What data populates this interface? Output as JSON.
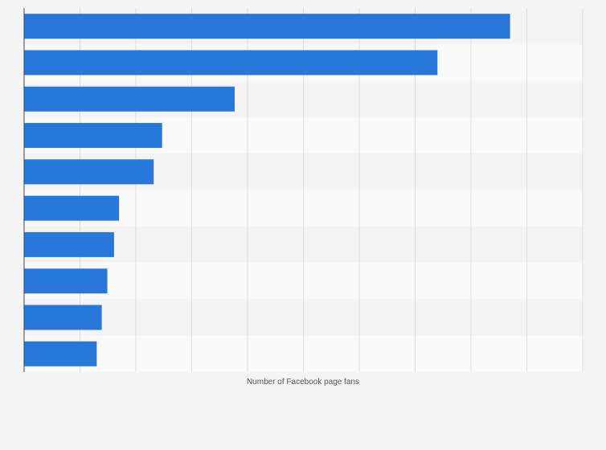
{
  "chart_data": {
    "type": "bar",
    "orientation": "horizontal",
    "title": "",
    "xlabel": "Number of Facebook page fans",
    "ylabel": "",
    "categories": [
      "",
      "",
      "",
      "",
      "",
      "",
      "",
      "",
      "",
      ""
    ],
    "values": [
      87,
      74,
      37.7,
      24.7,
      23.2,
      17,
      16.1,
      14.9,
      13.9,
      13
    ],
    "xlim": [
      0,
      100
    ],
    "grid": true,
    "legend": "none",
    "colors": {
      "bar": "#2878dc",
      "row_alt": "#f4f4f4",
      "row_base": "#fafafa",
      "grid": "#dddddd",
      "axis": "#444444"
    }
  }
}
